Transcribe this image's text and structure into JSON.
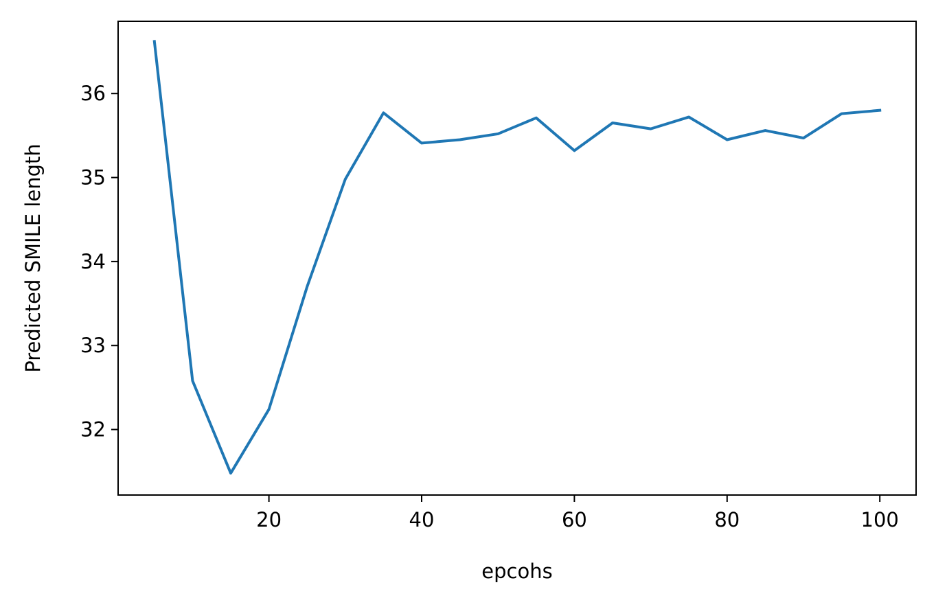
{
  "chart_data": {
    "type": "line",
    "title": "",
    "xlabel": "epcohs",
    "ylabel": "Predicted SMILE length",
    "xlim": [
      0.25,
      104.75
    ],
    "ylim": [
      31.22,
      36.86
    ],
    "xticks": [
      20,
      40,
      60,
      80,
      100
    ],
    "yticks": [
      32,
      33,
      34,
      35,
      36
    ],
    "grid": false,
    "legend": "none",
    "series": [
      {
        "color": "#1f77b4",
        "x": [
          5,
          10,
          15,
          20,
          25,
          30,
          35,
          40,
          45,
          50,
          55,
          60,
          65,
          70,
          75,
          80,
          85,
          90,
          95,
          100
        ],
        "y": [
          36.62,
          32.58,
          31.48,
          32.24,
          33.7,
          34.98,
          35.77,
          35.41,
          35.45,
          35.52,
          35.71,
          35.32,
          35.65,
          35.58,
          35.72,
          35.45,
          35.56,
          35.47,
          35.76,
          35.8
        ]
      }
    ]
  }
}
